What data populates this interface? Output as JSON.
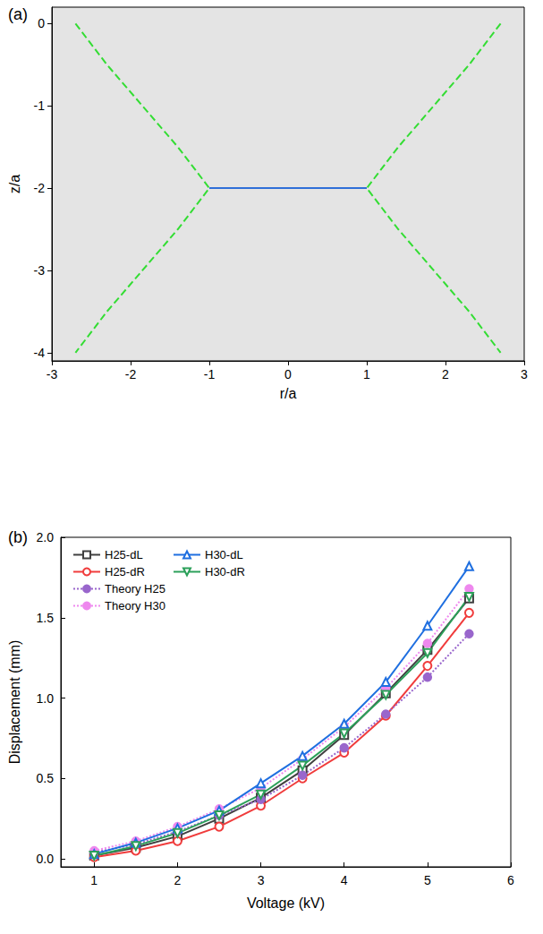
{
  "chart_data": [
    {
      "type": "line",
      "title": "(a)",
      "x_label": "r/a",
      "y_label": "z/a",
      "xlim": [
        -3,
        3
      ],
      "xticks": [
        -3,
        -2,
        -1,
        0,
        1,
        2,
        3
      ],
      "ylim": [
        -4.1,
        0.2
      ],
      "yticks": [
        -4,
        -3,
        -2,
        -1,
        0
      ],
      "grid": false,
      "series": [
        {
          "color": "#33dd33",
          "line_style": "dashed",
          "x": [
            -2.7,
            -2.3,
            -1.85,
            -1.4,
            -1.0,
            -1.4,
            -1.85,
            -2.3,
            -2.7
          ],
          "values": [
            0,
            -0.5,
            -1,
            -1.5,
            -2,
            -2.5,
            -3,
            -3.5,
            -4
          ]
        },
        {
          "color": "#33dd33",
          "line_style": "dashed",
          "x": [
            2.7,
            2.3,
            1.85,
            1.4,
            1.0,
            1.4,
            1.85,
            2.3,
            2.7
          ],
          "values": [
            0,
            -0.5,
            -1,
            -1.5,
            -2,
            -2.5,
            -3,
            -3.5,
            -4
          ]
        },
        {
          "color": "#2f6fd8",
          "line_style": "solid",
          "x": [
            -1,
            1
          ],
          "values": [
            -2,
            -2
          ]
        }
      ]
    },
    {
      "type": "line",
      "title": "(b)",
      "x_label": "Voltage (kV)",
      "y_label": "Displacement (mm)",
      "xlim": [
        0.6,
        6
      ],
      "xticks": [
        1,
        2,
        3,
        4,
        5,
        6
      ],
      "ylim": [
        -0.05,
        2.0
      ],
      "yticks": [
        {
          "value": 0,
          "label": "0.0"
        },
        0.5,
        {
          "value": 1,
          "label": "1.0"
        },
        1.5,
        {
          "value": 2,
          "label": "2.0"
        }
      ],
      "grid": false,
      "legend": "upper left",
      "x": [
        1,
        1.5,
        2,
        2.5,
        3,
        3.5,
        4,
        4.5,
        5,
        5.5
      ],
      "series": [
        {
          "name": "H25-dL",
          "color": "#404040",
          "marker": "square",
          "line_style": "solid",
          "values": [
            0.02,
            0.07,
            0.14,
            0.25,
            0.38,
            0.55,
            0.77,
            1.03,
            1.3,
            1.62
          ]
        },
        {
          "name": "H25-dR",
          "color": "#f03c3c",
          "marker": "circle",
          "line_style": "solid",
          "values": [
            0.01,
            0.05,
            0.11,
            0.2,
            0.33,
            0.5,
            0.66,
            0.89,
            1.2,
            1.53
          ]
        },
        {
          "name": "Theory H25",
          "color": "#9966cc",
          "marker": "filled-circle",
          "line_style": "dotted",
          "values": [
            0.04,
            0.09,
            0.17,
            0.27,
            0.37,
            0.52,
            0.69,
            0.9,
            1.13,
            1.4
          ]
        },
        {
          "name": "Theory H30",
          "color": "#ee88ee",
          "marker": "filled-circle",
          "line_style": "dotted",
          "values": [
            0.05,
            0.11,
            0.2,
            0.31,
            0.44,
            0.62,
            0.82,
            1.06,
            1.34,
            1.68
          ]
        },
        {
          "name": "H30-dL",
          "color": "#1f6fe0",
          "marker": "triangle-up",
          "line_style": "solid",
          "values": [
            0.03,
            0.1,
            0.19,
            0.3,
            0.47,
            0.64,
            0.84,
            1.1,
            1.45,
            1.82
          ]
        },
        {
          "name": "H30-dR",
          "color": "#2ca05a",
          "marker": "triangle-down",
          "line_style": "solid",
          "values": [
            0.02,
            0.08,
            0.16,
            0.27,
            0.4,
            0.58,
            0.78,
            1.02,
            1.28,
            1.63
          ]
        }
      ]
    }
  ]
}
